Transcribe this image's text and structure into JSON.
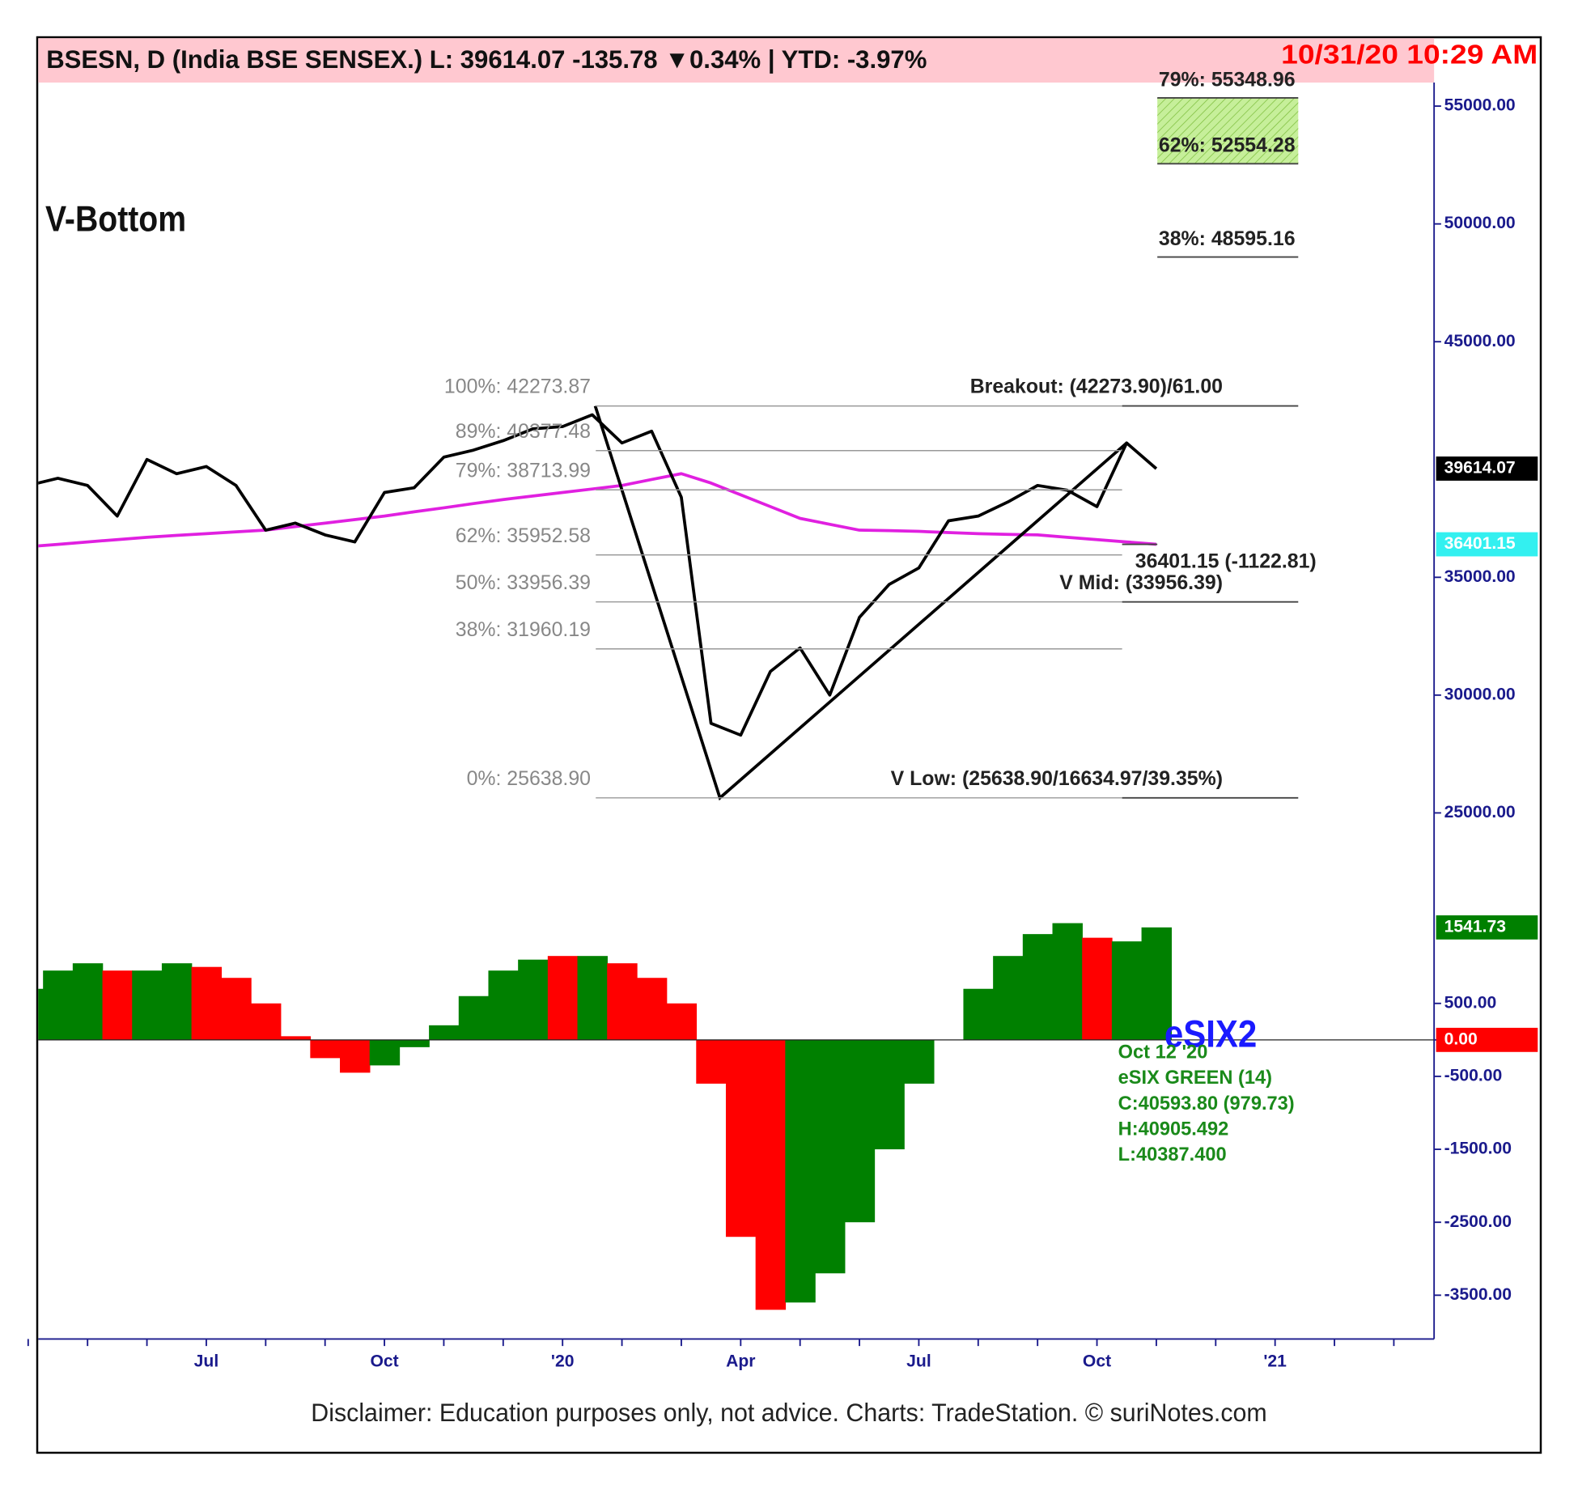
{
  "chart_data": [
    {
      "type": "line",
      "title": "BSESN, D (India BSE SENSEX.) L: 39614.07 -135.78 ▼0.34%  |  YTD: -3.97%",
      "timestamp": "10/31/20 10:29 AM",
      "subtitle": "V-Bottom",
      "footer": "Disclaimer: Education purposes only, not advice.  Charts: TradeStation.     © suriNotes.com",
      "categories": [
        null,
        null,
        null,
        null,
        null,
        null,
        "Jul",
        null,
        null,
        null,
        null,
        null,
        "Oct",
        null,
        null,
        null,
        null,
        null,
        "'20",
        null,
        null,
        null,
        null,
        null,
        "Apr",
        null,
        null,
        null,
        null,
        null,
        "Jul",
        null,
        null,
        null,
        null,
        null,
        "Oct",
        null,
        null,
        null,
        null,
        null,
        "'21",
        null,
        null,
        null,
        null,
        null
      ],
      "series": [
        {
          "color": "#000000",
          "values": [
            38900,
            39200,
            38900,
            37600,
            40000,
            39400,
            39700,
            38900,
            37000,
            37300,
            36800,
            36500,
            38600,
            38800,
            40100,
            40400,
            40800,
            41300,
            41400,
            41900,
            40700,
            41200,
            38400,
            28800,
            28300,
            31000,
            32000,
            30000,
            33300,
            34700,
            35400,
            37400,
            37600,
            38200,
            38900,
            38700,
            38000,
            40700,
            39614.07,
            null,
            null,
            null,
            null,
            null,
            null,
            null,
            null,
            null
          ]
        },
        {
          "color": "#e020e0",
          "values": [
            36300,
            36400,
            36500,
            36600,
            36700,
            36780,
            36850,
            36930,
            37000,
            37150,
            37300,
            37450,
            37600,
            37780,
            37950,
            38130,
            38300,
            38450,
            38600,
            38750,
            38900,
            39150,
            39400,
            39000,
            38500,
            38000,
            37500,
            37250,
            37000,
            36980,
            36950,
            36900,
            36850,
            36820,
            36800,
            36700,
            36600,
            36500,
            36401.15,
            null,
            null,
            null,
            null,
            null,
            null,
            null,
            null,
            null
          ]
        }
      ],
      "ylim": [
        21900,
        56000
      ],
      "yticks": [
        {
          "value": 25000,
          "label": "25000.00"
        },
        {
          "value": 30000,
          "label": "30000.00"
        },
        {
          "value": 35000,
          "label": "35000.00"
        },
        {
          "value": 45000,
          "label": "45000.00"
        },
        {
          "value": 50000,
          "label": "50000.00"
        },
        {
          "value": 55000,
          "label": "55000.00"
        }
      ],
      "fib_levels": [
        {
          "label": "100%: 42273.87",
          "value": 42273.87
        },
        {
          "label": "89%: 40377.48",
          "value": 40377.48
        },
        {
          "label": "79%: 38713.99",
          "value": 38713.99
        },
        {
          "label": "62%: 35952.58",
          "value": 35952.58
        },
        {
          "label": "50%: 33956.39",
          "value": 33956.39
        },
        {
          "label": "38%: 31960.19",
          "value": 31960.19
        },
        {
          "label": "0%: 25638.90",
          "value": 25638.9
        }
      ],
      "extension_levels": [
        {
          "label": "79%: 55348.96",
          "value": 55348.96
        },
        {
          "label": "62%: 52554.28",
          "value": 52554.28
        },
        {
          "label": "38%: 48595.16",
          "value": 48595.16
        }
      ],
      "target_zone_color": "#c6ef9a",
      "annotations": [
        {
          "text": "Breakout: (42273.90)/61.00",
          "value": 42273.9
        },
        {
          "text": "36401.15 (-1122.81)",
          "value": 36401.15
        },
        {
          "text": "V Mid: (33956.39)",
          "value": 33956.39
        },
        {
          "text": "V Low: (25638.90/16634.97/39.35%)",
          "value": 25638.9
        }
      ]
    },
    {
      "type": "bar",
      "title": "eSIX2",
      "info": [
        "Oct 12 '20",
        "eSIX GREEN (14)",
        "C:40593.80 (979.73)",
        "H:40905.492",
        "L:40387.400"
      ],
      "values": [
        700,
        950,
        1050,
        950,
        950,
        1050,
        1000,
        850,
        500,
        50,
        -250,
        -450,
        -350,
        -100,
        200,
        600,
        950,
        1100,
        1150,
        1150,
        1050,
        850,
        500,
        -600,
        -2700,
        -3700,
        -3600,
        -3200,
        -2500,
        -1500,
        -600,
        0,
        700,
        1150,
        1450,
        1600,
        1400,
        1350,
        1541.73,
        null,
        null,
        null,
        null,
        null,
        null,
        null,
        null,
        null
      ],
      "colors": [
        "#008000",
        "#008000",
        "#008000",
        "#ff0000",
        "#008000",
        "#008000",
        "#ff0000",
        "#ff0000",
        "#ff0000",
        "#ff0000",
        "#ff0000",
        "#ff0000",
        "#008000",
        "#008000",
        "#008000",
        "#008000",
        "#008000",
        "#008000",
        "#ff0000",
        "#008000",
        "#ff0000",
        "#ff0000",
        "#ff0000",
        "#ff0000",
        "#ff0000",
        "#ff0000",
        "#008000",
        "#008000",
        "#008000",
        "#008000",
        "#008000",
        "#008000",
        "#008000",
        "#008000",
        "#008000",
        "#008000",
        "#ff0000",
        "#008000",
        "#008000",
        null,
        null,
        null,
        null,
        null,
        null,
        null,
        null,
        null
      ],
      "ylim": [
        -4100,
        1834
      ],
      "yticks": [
        {
          "value": -3500,
          "label": "-3500.00"
        },
        {
          "value": -2500,
          "label": "-2500.00"
        },
        {
          "value": -1500,
          "label": "-1500.00"
        },
        {
          "value": -500,
          "label": "-500.00"
        },
        {
          "value": 0,
          "label": "0.00"
        },
        {
          "value": 500,
          "label": "500.00"
        }
      ]
    }
  ]
}
